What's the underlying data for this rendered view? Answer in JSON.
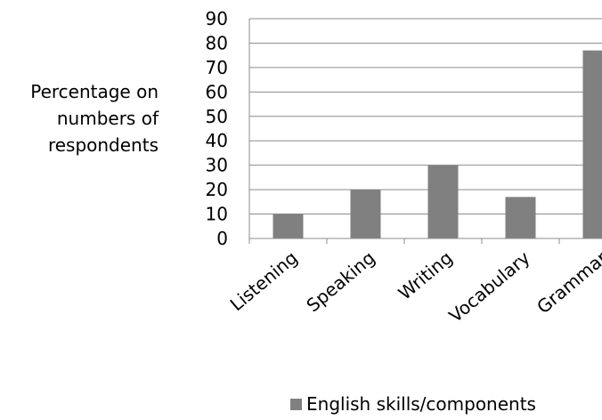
{
  "chart_data": {
    "type": "bar",
    "title": "",
    "xlabel": "",
    "ylabel": "Percentage on numbers of respondents",
    "ylabel_lines": [
      "Percentage on",
      "numbers of",
      "respondents"
    ],
    "categories": [
      "Listening",
      "Speaking",
      "Writing",
      "Vocabulary",
      "Grammar"
    ],
    "series": [
      {
        "name": "English skills/components",
        "values": [
          10,
          20,
          30,
          17,
          77
        ]
      }
    ],
    "ylim": [
      0,
      90
    ],
    "yticks": [
      0,
      10,
      20,
      30,
      40,
      50,
      60,
      70,
      80,
      90
    ],
    "grid": true,
    "legend_position": "bottom",
    "bar_color": "#808080"
  }
}
